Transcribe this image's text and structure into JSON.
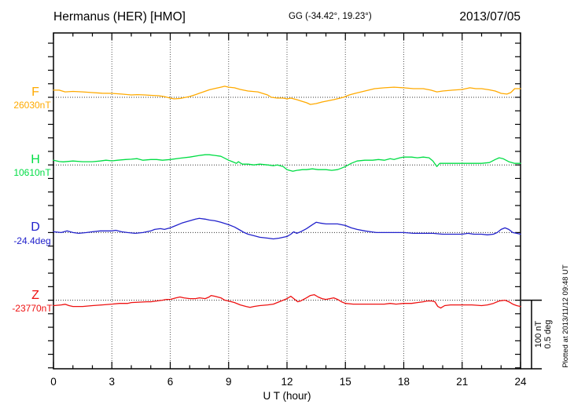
{
  "header": {
    "title": "Hermanus (HER)  [HMO]",
    "gg_coords": "GG (-34.42°,  19.23°)",
    "date": "2013/07/05"
  },
  "chart_data": {
    "type": "line",
    "title": "Hermanus (HER) [HMO] magnetogram 2013/07/05",
    "xlabel": "U T (hour)",
    "xlim": [
      0,
      24
    ],
    "x_tick_labels": [
      "0",
      "3",
      "6",
      "9",
      "12",
      "15",
      "18",
      "21",
      "24"
    ],
    "x_major_ticks": [
      0,
      3,
      6,
      9,
      12,
      15,
      18,
      21,
      24
    ],
    "x_minor_step": 1,
    "grid": "dotted vertical gridlines every 3 h; dotted zero baseline per channel",
    "y_minor_tick_nT": 20,
    "scale_bar": {
      "nT": 100,
      "deg": 0.5,
      "label_lines": [
        "100 nT",
        "0.5 deg"
      ]
    },
    "plotted_at": "Plotted at 2013/11/12 09:48 UT",
    "channels": [
      {
        "id": "F",
        "label": "F",
        "baseline_label": "26030nT",
        "unit": "nT",
        "color": "#ffaa00",
        "series": [
          [
            0,
            10.5
          ],
          [
            0.3,
            10.5
          ],
          [
            0.6,
            8
          ],
          [
            1,
            8.7
          ],
          [
            1.5,
            8
          ],
          [
            2,
            7
          ],
          [
            2.5,
            6
          ],
          [
            3,
            5.8
          ],
          [
            3.5,
            4.7
          ],
          [
            4,
            3.5
          ],
          [
            4.3,
            4
          ],
          [
            4.7,
            3.5
          ],
          [
            5,
            2.9
          ],
          [
            5.4,
            2.3
          ],
          [
            5.7,
            1
          ],
          [
            6,
            -1.2
          ],
          [
            6.2,
            -2.3
          ],
          [
            6.5,
            -1.7
          ],
          [
            6.8,
            0
          ],
          [
            7,
            1.2
          ],
          [
            7.3,
            4
          ],
          [
            7.7,
            8
          ],
          [
            8,
            11
          ],
          [
            8.3,
            13
          ],
          [
            8.6,
            15
          ],
          [
            8.8,
            16.3
          ],
          [
            9,
            15
          ],
          [
            9.3,
            14
          ],
          [
            9.6,
            11.6
          ],
          [
            10,
            9.3
          ],
          [
            10.5,
            8
          ],
          [
            11,
            3.5
          ],
          [
            11.2,
            0
          ],
          [
            11.5,
            -1.2
          ],
          [
            11.8,
            -1.2
          ],
          [
            12,
            -2.3
          ],
          [
            12.2,
            -1.2
          ],
          [
            12.5,
            -3.5
          ],
          [
            13,
            -8
          ],
          [
            13.2,
            -10.5
          ],
          [
            13.5,
            -9.3
          ],
          [
            13.8,
            -7
          ],
          [
            14,
            -5.8
          ],
          [
            14.4,
            -3.5
          ],
          [
            14.9,
            0
          ],
          [
            15.2,
            3.5
          ],
          [
            15.5,
            5.8
          ],
          [
            16,
            9.3
          ],
          [
            16.5,
            12.8
          ],
          [
            17,
            14
          ],
          [
            17.5,
            15
          ],
          [
            18,
            14
          ],
          [
            18.5,
            12.8
          ],
          [
            19,
            12.8
          ],
          [
            19.4,
            10.5
          ],
          [
            19.7,
            8
          ],
          [
            20,
            9.3
          ],
          [
            20.5,
            10.5
          ],
          [
            21,
            11.6
          ],
          [
            21.4,
            14
          ],
          [
            21.7,
            12.8
          ],
          [
            22,
            12.8
          ],
          [
            22.4,
            11
          ],
          [
            22.7,
            9.3
          ],
          [
            23,
            5.8
          ],
          [
            23.3,
            4.7
          ],
          [
            23.5,
            7
          ],
          [
            23.7,
            12.8
          ],
          [
            24,
            12.8
          ]
        ]
      },
      {
        "id": "H",
        "label": "H",
        "baseline_label": "10610nT",
        "unit": "nT",
        "color": "#00dd44",
        "series": [
          [
            0,
            7
          ],
          [
            0.3,
            5
          ],
          [
            0.5,
            4.5
          ],
          [
            1,
            5.8
          ],
          [
            1.5,
            4.7
          ],
          [
            2,
            4.7
          ],
          [
            2.4,
            5.8
          ],
          [
            2.7,
            7
          ],
          [
            3,
            6
          ],
          [
            3.3,
            7
          ],
          [
            3.7,
            8
          ],
          [
            4,
            8.5
          ],
          [
            4.3,
            9.3
          ],
          [
            4.6,
            7
          ],
          [
            5,
            8
          ],
          [
            5.3,
            8
          ],
          [
            5.6,
            7
          ],
          [
            6,
            8
          ],
          [
            6.5,
            10
          ],
          [
            7,
            11.6
          ],
          [
            7.5,
            14
          ],
          [
            7.8,
            15.1
          ],
          [
            8,
            15.1
          ],
          [
            8.3,
            14
          ],
          [
            8.6,
            12.8
          ],
          [
            9,
            7
          ],
          [
            9.2,
            4.7
          ],
          [
            9.4,
            2.3
          ],
          [
            9.5,
            4.7
          ],
          [
            9.7,
            1.2
          ],
          [
            10,
            1.2
          ],
          [
            10.3,
            0
          ],
          [
            10.6,
            1.2
          ],
          [
            11,
            0
          ],
          [
            11.3,
            -1.2
          ],
          [
            11.5,
            0
          ],
          [
            11.8,
            -2.3
          ],
          [
            12,
            -7
          ],
          [
            12.3,
            -9.3
          ],
          [
            12.5,
            -8
          ],
          [
            12.8,
            -7
          ],
          [
            13,
            -7
          ],
          [
            13.3,
            -5.8
          ],
          [
            13.6,
            -7
          ],
          [
            14,
            -7
          ],
          [
            14.3,
            -8
          ],
          [
            14.6,
            -7
          ],
          [
            14.8,
            -4.7
          ],
          [
            15,
            -2.3
          ],
          [
            15.3,
            2.3
          ],
          [
            15.6,
            5.8
          ],
          [
            16,
            7
          ],
          [
            16.4,
            7
          ],
          [
            16.7,
            8
          ],
          [
            17,
            7
          ],
          [
            17.3,
            9.3
          ],
          [
            17.5,
            8
          ],
          [
            17.8,
            10.5
          ],
          [
            18,
            11.6
          ],
          [
            18.4,
            11.6
          ],
          [
            18.7,
            10.5
          ],
          [
            19,
            11.6
          ],
          [
            19.3,
            10.5
          ],
          [
            19.5,
            5.8
          ],
          [
            19.7,
            -2.3
          ],
          [
            19.85,
            2.3
          ],
          [
            20,
            2.3
          ],
          [
            20.5,
            2.3
          ],
          [
            21,
            2.3
          ],
          [
            21.5,
            2.3
          ],
          [
            22,
            2.3
          ],
          [
            22.4,
            3.5
          ],
          [
            22.7,
            8
          ],
          [
            22.9,
            10.5
          ],
          [
            23.1,
            9.3
          ],
          [
            23.4,
            4.7
          ],
          [
            23.7,
            2.3
          ],
          [
            24,
            2.3
          ]
        ]
      },
      {
        "id": "D",
        "label": "D",
        "baseline_label": "-24.4deg",
        "unit": "deg",
        "color": "#2222cc",
        "series": [
          [
            0,
            0.006
          ],
          [
            0.4,
            0
          ],
          [
            0.7,
            0.012
          ],
          [
            1,
            0
          ],
          [
            1.3,
            -0.006
          ],
          [
            1.7,
            0
          ],
          [
            2,
            0.006
          ],
          [
            2.4,
            0.012
          ],
          [
            3,
            0.012
          ],
          [
            3.2,
            0.017
          ],
          [
            3.5,
            0.006
          ],
          [
            3.8,
            0
          ],
          [
            4.2,
            -0.006
          ],
          [
            4.6,
            0
          ],
          [
            5,
            0.012
          ],
          [
            5.2,
            0.023
          ],
          [
            5.5,
            0.029
          ],
          [
            5.7,
            0.023
          ],
          [
            6,
            0.035
          ],
          [
            6.3,
            0.052
          ],
          [
            6.6,
            0.07
          ],
          [
            7,
            0.087
          ],
          [
            7.3,
            0.099
          ],
          [
            7.5,
            0.105
          ],
          [
            7.8,
            0.099
          ],
          [
            8,
            0.093
          ],
          [
            8.3,
            0.087
          ],
          [
            8.6,
            0.076
          ],
          [
            9,
            0.058
          ],
          [
            9.3,
            0.041
          ],
          [
            9.6,
            0.017
          ],
          [
            9.8,
            0
          ],
          [
            10,
            -0.012
          ],
          [
            10.3,
            -0.023
          ],
          [
            10.6,
            -0.035
          ],
          [
            11,
            -0.041
          ],
          [
            11.3,
            -0.047
          ],
          [
            11.6,
            -0.041
          ],
          [
            12,
            -0.029
          ],
          [
            12.2,
            -0.012
          ],
          [
            12.35,
            0.006
          ],
          [
            12.5,
            -0.006
          ],
          [
            12.7,
            0.006
          ],
          [
            13,
            0.029
          ],
          [
            13.3,
            0.058
          ],
          [
            13.5,
            0.076
          ],
          [
            13.7,
            0.07
          ],
          [
            14,
            0.064
          ],
          [
            14.3,
            0.064
          ],
          [
            14.6,
            0.064
          ],
          [
            14.8,
            0.058
          ],
          [
            15,
            0.052
          ],
          [
            15.3,
            0.035
          ],
          [
            15.6,
            0.023
          ],
          [
            16,
            0.012
          ],
          [
            16.3,
            0.006
          ],
          [
            16.6,
            0
          ],
          [
            17,
            0
          ],
          [
            17.5,
            0
          ],
          [
            18,
            0
          ],
          [
            18.5,
            -0.006
          ],
          [
            19,
            -0.006
          ],
          [
            19.5,
            -0.006
          ],
          [
            20,
            -0.012
          ],
          [
            20.5,
            -0.012
          ],
          [
            21,
            -0.012
          ],
          [
            21.3,
            -0.006
          ],
          [
            21.6,
            -0.012
          ],
          [
            22,
            -0.012
          ],
          [
            22.3,
            -0.017
          ],
          [
            22.6,
            -0.012
          ],
          [
            22.8,
            0
          ],
          [
            23,
            0.023
          ],
          [
            23.2,
            0.035
          ],
          [
            23.4,
            0.023
          ],
          [
            23.6,
            0
          ],
          [
            23.8,
            -0.006
          ],
          [
            24,
            -0.012
          ]
        ]
      },
      {
        "id": "Z",
        "label": "Z",
        "baseline_label": "-23770nT",
        "unit": "nT",
        "color": "#ee1111",
        "series": [
          [
            0,
            -8
          ],
          [
            0.4,
            -7
          ],
          [
            0.6,
            -6
          ],
          [
            0.8,
            -8
          ],
          [
            1,
            -9.3
          ],
          [
            1.5,
            -9.3
          ],
          [
            2,
            -8
          ],
          [
            2.5,
            -7
          ],
          [
            3,
            -5.8
          ],
          [
            3.4,
            -4.7
          ],
          [
            3.8,
            -4.7
          ],
          [
            4,
            -3.5
          ],
          [
            4.4,
            -2.9
          ],
          [
            4.8,
            -2.3
          ],
          [
            5,
            -2.3
          ],
          [
            5.3,
            -1.2
          ],
          [
            5.6,
            0
          ],
          [
            5.8,
            1.2
          ],
          [
            6,
            1.2
          ],
          [
            6.3,
            3.5
          ],
          [
            6.5,
            4.7
          ],
          [
            6.7,
            3.5
          ],
          [
            7,
            2.3
          ],
          [
            7.3,
            2.3
          ],
          [
            7.5,
            3.5
          ],
          [
            7.8,
            2.3
          ],
          [
            8,
            4.7
          ],
          [
            8.1,
            7
          ],
          [
            8.3,
            5.8
          ],
          [
            8.6,
            3.5
          ],
          [
            8.8,
            0
          ],
          [
            9,
            -1.2
          ],
          [
            9.3,
            -3.5
          ],
          [
            9.6,
            -7
          ],
          [
            9.9,
            -9.3
          ],
          [
            10.1,
            -10.5
          ],
          [
            10.3,
            -9.3
          ],
          [
            10.6,
            -8
          ],
          [
            11,
            -7
          ],
          [
            11.3,
            -5.8
          ],
          [
            11.5,
            -3.5
          ],
          [
            11.7,
            -1.2
          ],
          [
            12,
            2.3
          ],
          [
            12.2,
            5.8
          ],
          [
            12.4,
            1.2
          ],
          [
            12.55,
            -2.3
          ],
          [
            12.7,
            -1.2
          ],
          [
            13,
            3.5
          ],
          [
            13.2,
            7
          ],
          [
            13.4,
            8.1
          ],
          [
            13.6,
            4.7
          ],
          [
            13.8,
            2.3
          ],
          [
            14,
            1.2
          ],
          [
            14.2,
            2.3
          ],
          [
            14.4,
            3.5
          ],
          [
            14.6,
            1.2
          ],
          [
            14.8,
            -2.3
          ],
          [
            15,
            -4.7
          ],
          [
            15.4,
            -5.8
          ],
          [
            16,
            -5.8
          ],
          [
            16.5,
            -5.8
          ],
          [
            17,
            -5.8
          ],
          [
            17.3,
            -4.7
          ],
          [
            17.6,
            -5.8
          ],
          [
            18,
            -4.7
          ],
          [
            18.4,
            -4.7
          ],
          [
            18.7,
            -3.5
          ],
          [
            19,
            -2.3
          ],
          [
            19.2,
            -1.2
          ],
          [
            19.45,
            -1.2
          ],
          [
            19.6,
            -2.3
          ],
          [
            19.75,
            -9.3
          ],
          [
            19.9,
            -11.6
          ],
          [
            20.1,
            -8
          ],
          [
            20.4,
            -7
          ],
          [
            21,
            -7
          ],
          [
            21.5,
            -7
          ],
          [
            22,
            -8
          ],
          [
            22.3,
            -7
          ],
          [
            22.6,
            -4.7
          ],
          [
            22.9,
            -1.2
          ],
          [
            23.2,
            0
          ],
          [
            23.4,
            -2.3
          ],
          [
            23.6,
            -5.8
          ],
          [
            23.8,
            -8
          ],
          [
            24,
            -9.3
          ]
        ]
      }
    ]
  }
}
